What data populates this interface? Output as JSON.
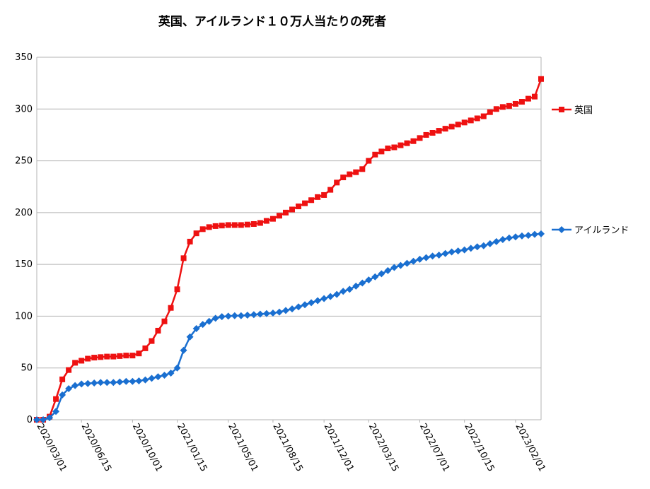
{
  "chart_data": {
    "type": "line",
    "title": "英国、アイルランド１０万人当たりの死者",
    "categories": [
      "2020/03/01",
      null,
      null,
      null,
      null,
      null,
      null,
      "2020/06/15",
      null,
      null,
      null,
      null,
      null,
      null,
      null,
      "2020/10/01",
      null,
      null,
      null,
      null,
      null,
      null,
      "2021/01/15",
      null,
      null,
      null,
      null,
      null,
      null,
      null,
      "2021/05/01",
      null,
      null,
      null,
      null,
      null,
      null,
      "2021/08/15",
      null,
      null,
      null,
      null,
      null,
      null,
      null,
      "2021/12/01",
      null,
      null,
      null,
      null,
      null,
      null,
      "2022/03/15",
      null,
      null,
      null,
      null,
      null,
      null,
      null,
      "2022/07/01",
      null,
      null,
      null,
      null,
      null,
      null,
      "2022/10/15",
      null,
      null,
      null,
      null,
      null,
      null,
      null,
      "2023/02/01",
      null,
      null,
      null,
      null
    ],
    "series": [
      {
        "name": "英国",
        "color": "#ee1111",
        "marker": "square",
        "values": [
          0,
          0,
          3,
          20,
          39,
          48,
          55,
          57,
          59,
          60,
          60.5,
          61,
          61,
          61.5,
          62,
          62,
          64,
          69,
          76,
          86,
          95,
          108,
          126,
          156,
          172,
          180,
          184,
          186,
          187,
          187.5,
          188,
          188,
          188,
          188.5,
          189,
          190,
          192,
          194,
          197,
          200,
          203,
          206,
          209,
          212,
          215,
          217,
          222,
          229,
          234,
          237,
          239,
          242,
          250,
          256,
          259,
          262,
          263,
          265,
          267,
          269,
          272,
          275,
          277,
          279,
          281,
          283,
          285,
          287,
          289,
          291,
          293,
          297,
          300,
          302,
          303,
          305,
          307,
          310,
          312,
          329
        ]
      },
      {
        "name": "アイルランド",
        "color": "#1a6fd0",
        "marker": "diamond",
        "values": [
          0,
          0,
          2,
          8,
          24,
          30,
          33,
          34.5,
          35,
          35.5,
          36,
          36,
          36,
          36.5,
          37,
          37,
          37.5,
          38.5,
          40,
          41.5,
          43,
          45,
          50,
          67,
          80,
          88,
          92,
          95,
          98,
          99.5,
          100,
          100.5,
          100.5,
          101,
          101.5,
          102,
          102.5,
          103,
          104,
          105.5,
          107,
          109,
          111,
          113,
          115,
          117,
          119,
          121,
          124,
          126,
          129,
          132,
          135,
          138,
          141,
          144,
          147,
          149,
          151,
          153,
          155,
          156.5,
          158,
          159,
          160.5,
          162,
          163,
          164,
          165.5,
          167,
          168,
          170,
          172,
          174,
          175.5,
          176.5,
          177.5,
          178,
          179,
          179.5
        ]
      }
    ],
    "ylim": [
      0,
      350
    ],
    "yticks": [
      0,
      50,
      100,
      150,
      200,
      250,
      300,
      350
    ],
    "grid": true,
    "legend": "right"
  }
}
